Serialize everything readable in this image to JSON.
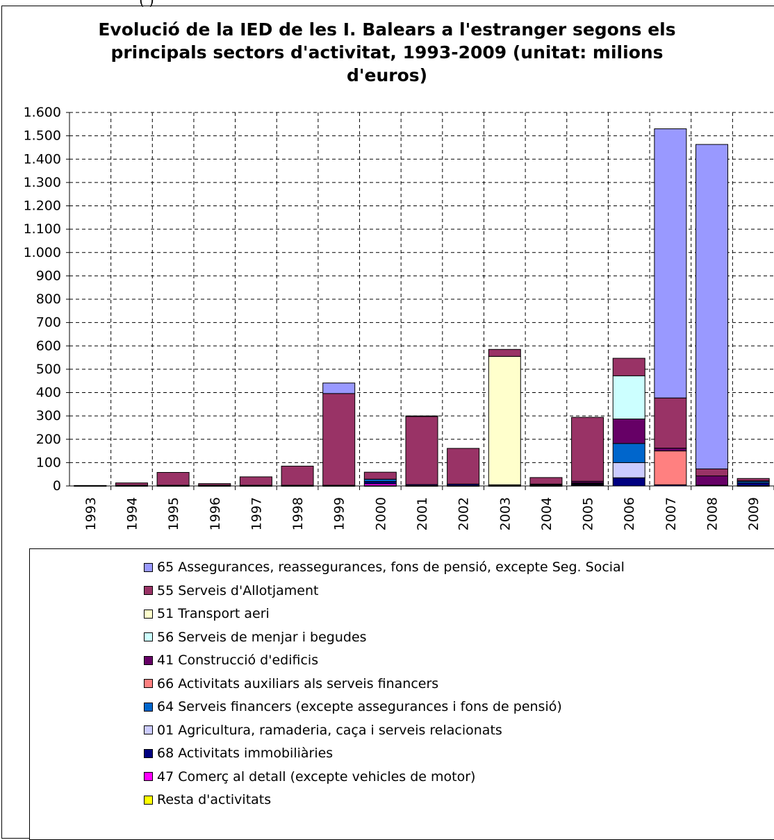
{
  "chart_data": {
    "type": "bar",
    "stacked": true,
    "title_lines": [
      "Evolució de la IED de les I. Balears a l'estranger segons els",
      "principals sectors d'activitat, 1993-2009 (unitat: milions",
      "d'euros)"
    ],
    "top_cutoff_text": "(                                                                        )",
    "ylim": [
      0,
      1600
    ],
    "yticks": [
      0,
      100,
      200,
      300,
      400,
      500,
      600,
      700,
      800,
      900,
      1000,
      1100,
      1200,
      1300,
      1400,
      1500,
      1600
    ],
    "ytick_labels": [
      "0",
      "100",
      "200",
      "300",
      "400",
      "500",
      "600",
      "700",
      "800",
      "900",
      "1.000",
      "1.100",
      "1.200",
      "1.300",
      "1.400",
      "1.500",
      "1.600"
    ],
    "grid": true,
    "legend_position": "bottom",
    "categories": [
      "1993",
      "1994",
      "1995",
      "1996",
      "1997",
      "1998",
      "1999",
      "2000",
      "2001",
      "2002",
      "2003",
      "2004",
      "2005",
      "2006",
      "2007",
      "2008",
      "2009"
    ],
    "series": [
      {
        "name": "Resta d'activitats",
        "color": "#ffff00",
        "values": [
          0,
          1,
          1,
          1,
          1,
          1,
          1,
          1,
          1,
          1,
          1,
          1,
          3,
          0,
          0,
          0,
          1
        ]
      },
      {
        "name": "47 Comerç al detall (excepte vehicles de motor)",
        "color": "#ff00ff",
        "values": [
          0,
          0,
          0,
          0,
          0,
          0,
          0,
          8,
          0,
          0,
          0,
          0,
          3,
          0,
          0,
          0,
          0
        ]
      },
      {
        "name": "68 Activitats immobiliàries",
        "color": "#000080",
        "values": [
          1,
          2,
          2,
          2,
          2,
          2,
          2,
          10,
          5,
          7,
          4,
          4,
          4,
          35,
          5,
          3,
          12
        ]
      },
      {
        "name": "01 Agricultura, ramaderia, caça i serveis relacionats",
        "color": "#ccccff",
        "values": [
          0,
          0,
          0,
          0,
          0,
          0,
          0,
          0,
          0,
          0,
          0,
          0,
          0,
          65,
          0,
          0,
          0
        ]
      },
      {
        "name": "64 Serveis financers (excepte assegurances i fons de pensió)",
        "color": "#0066cc",
        "values": [
          0,
          0,
          0,
          0,
          0,
          0,
          0,
          10,
          0,
          0,
          0,
          0,
          0,
          82,
          0,
          0,
          7
        ]
      },
      {
        "name": "66 Activitats auxiliars als serveis financers",
        "color": "#ff8080",
        "values": [
          0,
          0,
          0,
          0,
          0,
          0,
          0,
          0,
          0,
          0,
          0,
          0,
          3,
          0,
          145,
          0,
          0
        ]
      },
      {
        "name": "41 Construcció d'edificis",
        "color": "#660066",
        "values": [
          0,
          0,
          0,
          0,
          0,
          0,
          0,
          0,
          0,
          0,
          0,
          3,
          7,
          105,
          12,
          40,
          2
        ]
      },
      {
        "name": "56 Serveis de menjar i begudes",
        "color": "#ccffff",
        "values": [
          0,
          0,
          0,
          0,
          0,
          0,
          0,
          0,
          0,
          0,
          0,
          0,
          0,
          185,
          0,
          0,
          0
        ]
      },
      {
        "name": "51 Transport aeri",
        "color": "#ffffcc",
        "values": [
          0,
          0,
          0,
          0,
          0,
          0,
          0,
          0,
          0,
          0,
          550,
          0,
          0,
          0,
          0,
          0,
          0
        ]
      },
      {
        "name": "55 Serveis d'Allotjament",
        "color": "#993366",
        "values": [
          1,
          10,
          55,
          7,
          36,
          82,
          393,
          30,
          292,
          153,
          30,
          28,
          274,
          75,
          215,
          30,
          10
        ]
      },
      {
        "name": "65 Assegurances, reassegurances, fons de pensió, excepte Seg. Social",
        "color": "#9999ff",
        "values": [
          0,
          0,
          0,
          0,
          0,
          0,
          45,
          0,
          2,
          0,
          0,
          0,
          0,
          0,
          1153,
          1390,
          0
        ]
      }
    ],
    "legend_order": [
      "65 Assegurances, reassegurances, fons de pensió, excepte Seg. Social",
      "55 Serveis d'Allotjament",
      "51 Transport aeri",
      "56 Serveis de menjar i begudes",
      "41 Construcció d'edificis",
      "66 Activitats auxiliars als serveis financers",
      "64 Serveis financers (excepte assegurances i fons de pensió)",
      "01 Agricultura, ramaderia, caça i serveis relacionats",
      "68 Activitats immobiliàries",
      "47 Comerç al detall (excepte vehicles de motor)",
      "Resta d'activitats"
    ]
  }
}
